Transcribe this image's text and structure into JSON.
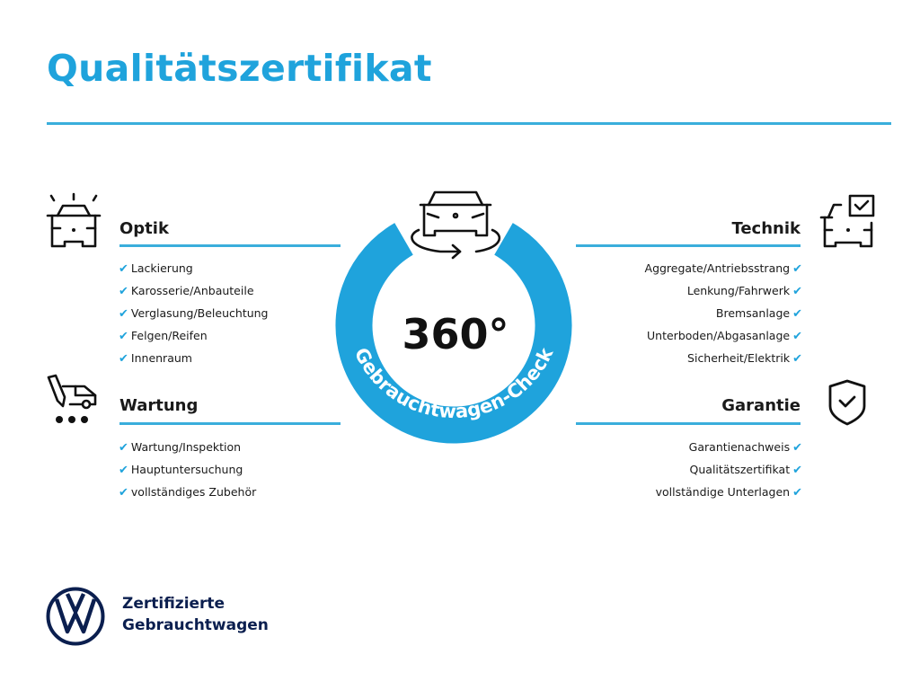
{
  "title": "Qualitätszertifikat",
  "accent_color": "#1fa3dc",
  "center": {
    "big_text": "360°",
    "ring_text": "Gebrauchtwagen-Check",
    "icon": "car-rotate-icon"
  },
  "sections": {
    "optik": {
      "heading": "Optik",
      "icon": "car-lights-icon",
      "items": [
        "Lackierung",
        "Karosserie/Anbauteile",
        "Verglasung/Beleuchtung",
        "Felgen/Reifen",
        "Innenraum"
      ]
    },
    "wartung": {
      "heading": "Wartung",
      "icon": "van-tools-icon",
      "items": [
        "Wartung/Inspektion",
        "Hauptuntersuchung",
        "vollständiges Zubehör"
      ]
    },
    "technik": {
      "heading": "Technik",
      "icon": "car-checkbox-icon",
      "items": [
        "Aggregate/Antriebsstrang",
        "Lenkung/Fahrwerk",
        "Bremsanlage",
        "Unterboden/Abgasanlage",
        "Sicherheit/Elektrik"
      ]
    },
    "garantie": {
      "heading": "Garantie",
      "icon": "shield-check-icon",
      "items": [
        "Garantienachweis",
        "Qualitätszertifikat",
        "vollständige Unterlagen"
      ]
    }
  },
  "check_glyph": "✔",
  "logo": {
    "line1": "Zertifizierte",
    "line2": "Gebrauchtwagen",
    "icon": "vw-logo-icon",
    "color": "#0b1f4f"
  }
}
